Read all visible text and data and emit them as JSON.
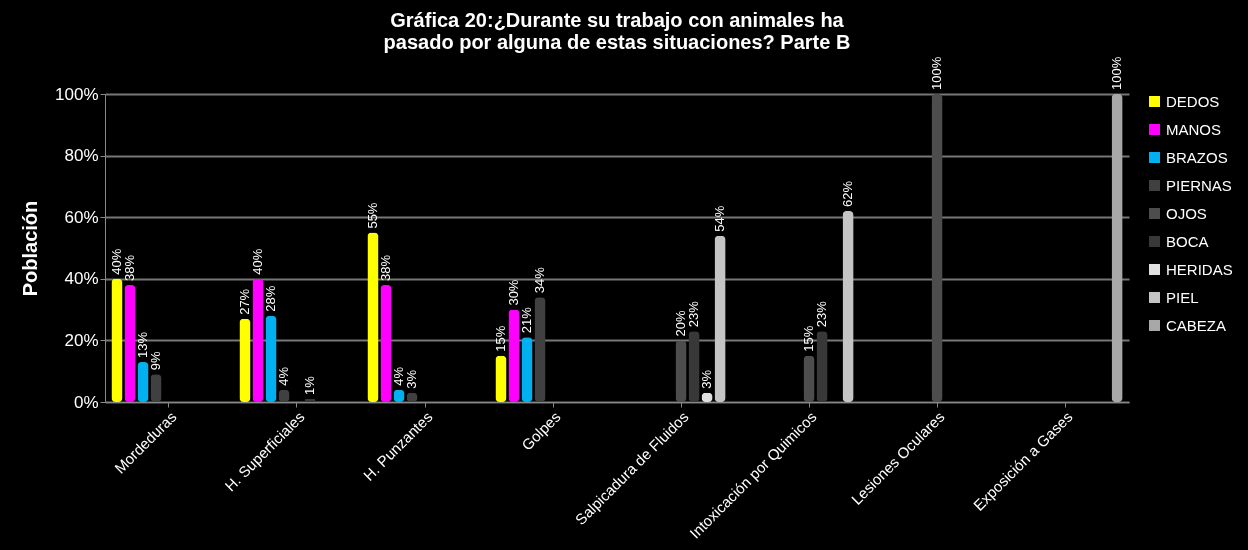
{
  "chart_data": {
    "type": "bar",
    "title": "Gráfica 20:¿Durante  su trabajo con animales ha pasado por alguna de estas situaciones? Parte B",
    "ylabel": "Población",
    "categories": [
      "Mordeduras",
      "H. Superficiales",
      "H. Punzantes",
      "Golpes",
      "Salpicadura de Fluidos",
      "Intoxicación por Quimicos",
      "Lesiones Oculares",
      "Exposición a Gases"
    ],
    "series": [
      {
        "name": "DEDOS",
        "color": "#ffff00",
        "values": [
          40,
          27,
          55,
          15,
          null,
          null,
          null,
          null
        ],
        "value_labels": [
          "40%",
          "27%",
          "55%",
          "15%",
          null,
          null,
          null,
          null
        ]
      },
      {
        "name": "MANOS",
        "color": "#ff00ff",
        "values": [
          38,
          40,
          38,
          30,
          null,
          null,
          null,
          null
        ],
        "value_labels": [
          "38%",
          "40%",
          "38%",
          "30%",
          null,
          null,
          null,
          null
        ]
      },
      {
        "name": "BRAZOS",
        "color": "#00b0f0",
        "values": [
          13,
          28,
          4,
          21,
          null,
          null,
          null,
          null
        ],
        "value_labels": [
          "13%",
          "28%",
          "4%",
          "21%",
          null,
          null,
          null,
          null
        ]
      },
      {
        "name": "PIERNAS",
        "color": "#404040",
        "values": [
          9,
          4,
          3,
          34,
          null,
          null,
          null,
          null
        ],
        "value_labels": [
          "9%",
          "4%",
          "3%",
          "34%",
          null,
          null,
          null,
          null
        ]
      },
      {
        "name": "OJOS",
        "color": "#4d4d4d",
        "values": [
          null,
          null,
          null,
          null,
          20,
          15,
          100,
          null
        ],
        "value_labels": [
          null,
          null,
          null,
          null,
          "20%",
          "15%",
          "100%",
          null
        ]
      },
      {
        "name": "BOCA",
        "color": "#383838",
        "values": [
          null,
          1,
          null,
          null,
          23,
          23,
          null,
          null
        ],
        "value_labels": [
          null,
          "1%",
          null,
          null,
          "23%",
          "23%",
          null,
          null
        ]
      },
      {
        "name": "HERIDAS",
        "color": "#e0e0e0",
        "values": [
          null,
          null,
          null,
          null,
          3,
          null,
          null,
          null
        ],
        "value_labels": [
          null,
          null,
          null,
          null,
          "3%",
          null,
          null,
          null
        ]
      },
      {
        "name": "PIEL",
        "color": "#c4c4c4",
        "values": [
          null,
          null,
          null,
          null,
          54,
          62,
          null,
          null
        ],
        "value_labels": [
          null,
          null,
          null,
          null,
          "54%",
          "62%",
          null,
          null
        ]
      },
      {
        "name": "CABEZA",
        "color": "#a8a8a8",
        "values": [
          null,
          null,
          null,
          null,
          null,
          null,
          null,
          100
        ],
        "value_labels": [
          null,
          null,
          null,
          null,
          null,
          null,
          null,
          "100%"
        ]
      }
    ],
    "ylim": [
      0,
      100
    ],
    "yticks": [
      {
        "value": 0,
        "label": "0%"
      },
      {
        "value": 20,
        "label": "20%"
      },
      {
        "value": 40,
        "label": "40%"
      },
      {
        "value": 60,
        "label": "60%"
      },
      {
        "value": 80,
        "label": "80%"
      },
      {
        "value": 100,
        "label": "100%"
      }
    ],
    "grid": "y",
    "legend": "right"
  }
}
